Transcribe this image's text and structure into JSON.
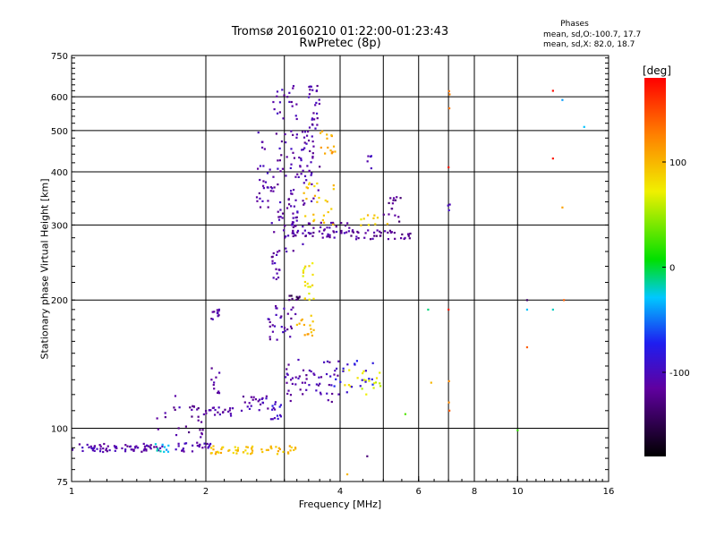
{
  "chart_data": {
    "type": "scatter",
    "title": "Tromsø 20160210 01:22:00-01:23:43",
    "subtitle": "RwPretec (8p)",
    "xlabel": "Frequency [MHz]",
    "ylabel": "Stationary phase Virtual Height [km]",
    "x_scale": "log",
    "y_scale": "log",
    "xlim": [
      1,
      16
    ],
    "ylim": [
      75,
      750
    ],
    "x_ticks": [
      1,
      2,
      4,
      6,
      8,
      10,
      16
    ],
    "x_tick_labels": [
      "1",
      "2",
      "4",
      "6",
      "8",
      "10",
      "16"
    ],
    "x_grid": [
      1,
      2,
      4,
      6,
      8,
      10,
      16
    ],
    "x_minor_grid": [
      3,
      5,
      7
    ],
    "y_ticks": [
      75,
      100,
      200,
      300,
      400,
      500,
      600,
      750
    ],
    "y_tick_labels": [
      "75",
      "100",
      "200",
      "300",
      "400",
      "500",
      "600",
      "750"
    ],
    "grid": true,
    "legend": {
      "heading": "Phases",
      "lines": [
        "mean, sd,O:-100.7, 17.7",
        "mean, sd,X:  82.0, 18.7"
      ]
    },
    "colorbar": {
      "label": "[deg]",
      "range": [
        -180,
        180
      ],
      "ticks": [
        100,
        0,
        -100
      ],
      "tick_labels": [
        "100",
        "0",
        "-100"
      ]
    },
    "clusters": [
      {
        "x": [
          1.0,
          1.6
        ],
        "y": [
          88,
          92
        ],
        "phase": -110,
        "density": 70
      },
      {
        "x": [
          1.5,
          1.65
        ],
        "y": [
          88,
          92
        ],
        "phase": -30,
        "density": 10
      },
      {
        "x": [
          1.7,
          2.05
        ],
        "y": [
          88,
          93
        ],
        "phase": -105,
        "density": 25
      },
      {
        "x": [
          2.05,
          3.2
        ],
        "y": [
          87,
          91
        ],
        "phase": 95,
        "density": 55
      },
      {
        "x": [
          1.55,
          1.75
        ],
        "y": [
          96,
          125
        ],
        "phase": -110,
        "density": 10
      },
      {
        "x": [
          1.8,
          2.0
        ],
        "y": [
          95,
          115
        ],
        "phase": -120,
        "density": 20
      },
      {
        "x": [
          2.0,
          2.3
        ],
        "y": [
          107,
          112
        ],
        "phase": -115,
        "density": 20
      },
      {
        "x": [
          2.05,
          2.15
        ],
        "y": [
          120,
          140
        ],
        "phase": -115,
        "density": 10
      },
      {
        "x": [
          2.05,
          2.15
        ],
        "y": [
          180,
          192
        ],
        "phase": -115,
        "density": 12
      },
      {
        "x": [
          2.4,
          2.9
        ],
        "y": [
          110,
          120
        ],
        "phase": -105,
        "density": 25
      },
      {
        "x": [
          2.8,
          3.0
        ],
        "y": [
          105,
          115
        ],
        "phase": -90,
        "density": 12
      },
      {
        "x": [
          3.0,
          4.0
        ],
        "y": [
          115,
          145
        ],
        "phase": -110,
        "density": 55
      },
      {
        "x": [
          4.0,
          5.0
        ],
        "y": [
          120,
          138
        ],
        "phase": 70,
        "density": 20
      },
      {
        "x": [
          3.8,
          4.8
        ],
        "y": [
          120,
          145
        ],
        "phase": -80,
        "density": 20
      },
      {
        "x": [
          2.75,
          3.2
        ],
        "y": [
          160,
          195
        ],
        "phase": -110,
        "density": 30
      },
      {
        "x": [
          3.2,
          3.5
        ],
        "y": [
          165,
          185
        ],
        "phase": 100,
        "density": 15
      },
      {
        "x": [
          3.3,
          3.5
        ],
        "y": [
          200,
          245
        ],
        "phase": 80,
        "density": 20
      },
      {
        "x": [
          3.05,
          3.25
        ],
        "y": [
          200,
          205
        ],
        "phase": -145,
        "density": 10
      },
      {
        "x": [
          2.8,
          3.0
        ],
        "y": [
          220,
          260
        ],
        "phase": -110,
        "density": 15
      },
      {
        "x": [
          2.8,
          3.3
        ],
        "y": [
          260,
          330
        ],
        "phase": -110,
        "density": 30
      },
      {
        "x": [
          3.0,
          4.2
        ],
        "y": [
          280,
          305
        ],
        "phase": -112,
        "density": 60
      },
      {
        "x": [
          4.2,
          5.8
        ],
        "y": [
          278,
          292
        ],
        "phase": -118,
        "density": 40
      },
      {
        "x": [
          4.4,
          5.2
        ],
        "y": [
          295,
          325
        ],
        "phase": 90,
        "density": 10
      },
      {
        "x": [
          5.0,
          5.5
        ],
        "y": [
          305,
          350
        ],
        "phase": -125,
        "density": 15
      },
      {
        "x": [
          2.6,
          3.6
        ],
        "y": [
          330,
          500
        ],
        "phase": -110,
        "density": 110
      },
      {
        "x": [
          3.3,
          3.9
        ],
        "y": [
          300,
          380
        ],
        "phase": 90,
        "density": 25
      },
      {
        "x": [
          3.6,
          3.9
        ],
        "y": [
          440,
          500
        ],
        "phase": 110,
        "density": 15
      },
      {
        "x": [
          3.4,
          3.6
        ],
        "y": [
          500,
          640
        ],
        "phase": -110,
        "density": 25
      },
      {
        "x": [
          2.8,
          3.2
        ],
        "y": [
          520,
          640
        ],
        "phase": -110,
        "density": 20
      },
      {
        "x": [
          4.6,
          4.7
        ],
        "y": [
          380,
          500
        ],
        "phase": -110,
        "density": 5
      },
      {
        "x": [
          7.0,
          7.05
        ],
        "y": [
          110,
          130
        ],
        "phase": 130,
        "density": 3
      },
      {
        "x": [
          6.95,
          7.05
        ],
        "y": [
          310,
          340
        ],
        "phase": -110,
        "density": 3
      },
      {
        "x": [
          6.95,
          7.05
        ],
        "y": [
          540,
          620
        ],
        "phase": 130,
        "density": 3
      }
    ],
    "isolated_points": [
      {
        "x": 4.15,
        "y": 78,
        "phase": 100
      },
      {
        "x": 4.6,
        "y": 86,
        "phase": -130
      },
      {
        "x": 5.6,
        "y": 108,
        "phase": 30
      },
      {
        "x": 6.3,
        "y": 190,
        "phase": -10
      },
      {
        "x": 6.4,
        "y": 128,
        "phase": 100
      },
      {
        "x": 7.0,
        "y": 410,
        "phase": 170
      },
      {
        "x": 7.0,
        "y": 190,
        "phase": 170
      },
      {
        "x": 10.0,
        "y": 99,
        "phase": 20
      },
      {
        "x": 10.5,
        "y": 200,
        "phase": -140
      },
      {
        "x": 10.5,
        "y": 190,
        "phase": -30
      },
      {
        "x": 10.5,
        "y": 155,
        "phase": 140
      },
      {
        "x": 12.0,
        "y": 620,
        "phase": 175
      },
      {
        "x": 12.0,
        "y": 430,
        "phase": 170
      },
      {
        "x": 12.0,
        "y": 190,
        "phase": -20
      },
      {
        "x": 12.6,
        "y": 590,
        "phase": -40
      },
      {
        "x": 12.6,
        "y": 330,
        "phase": 110
      },
      {
        "x": 12.7,
        "y": 200,
        "phase": 140
      },
      {
        "x": 14.1,
        "y": 510,
        "phase": -30
      }
    ]
  }
}
